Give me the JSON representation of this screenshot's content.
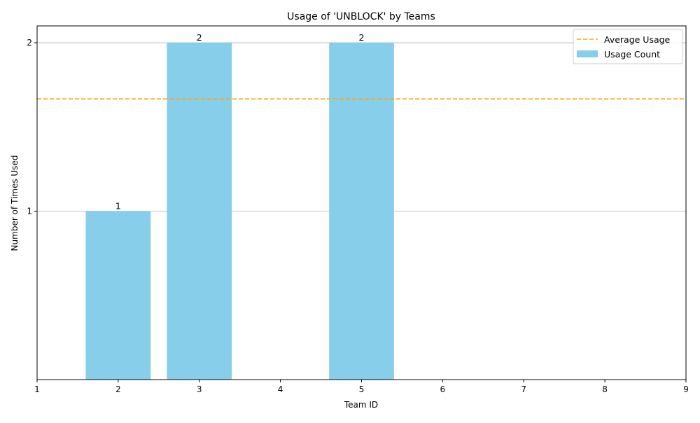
{
  "chart_data": {
    "type": "bar",
    "title": "Usage of 'UNBLOCK' by Teams",
    "xlabel": "Team ID",
    "ylabel": "Number of Times Used",
    "x": [
      2,
      3,
      5
    ],
    "values": [
      1,
      2,
      2
    ],
    "xlim": [
      1,
      9
    ],
    "ylim": [
      0,
      2.1
    ],
    "xticks": [
      "1",
      "2",
      "3",
      "4",
      "5",
      "6",
      "7",
      "8",
      "9"
    ],
    "yticks": [
      "1",
      "2"
    ],
    "grid": "y",
    "legend_position": "top-right",
    "series": [
      {
        "name": "Usage Count",
        "values": [
          1,
          2,
          2
        ],
        "color": "#87CEEB"
      }
    ],
    "reference_lines": [
      {
        "name": "Average Usage",
        "y": 1.6667,
        "color": "#FFA500",
        "style": "dashed"
      }
    ],
    "data_labels": [
      "1",
      "2",
      "2"
    ]
  }
}
